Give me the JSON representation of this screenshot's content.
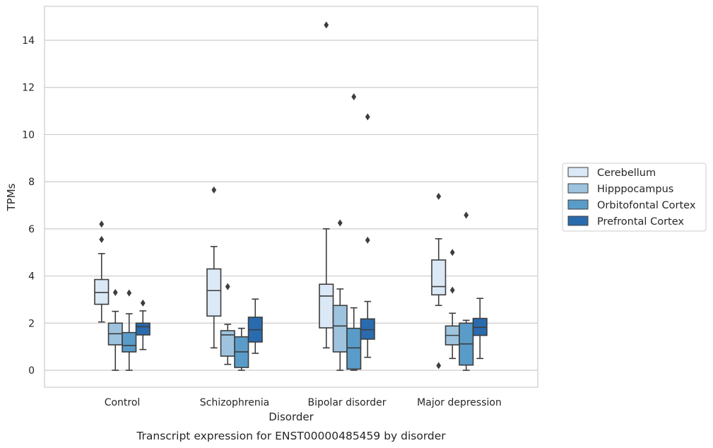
{
  "chart_data": {
    "type": "box",
    "xlabel": "Disorder",
    "ylabel": "TPMs",
    "caption": "Transcript expression for ENST00000485459 by disorder",
    "ylim": [
      -0.7,
      15.5
    ],
    "yticks": [
      0,
      2,
      4,
      6,
      8,
      10,
      12,
      14
    ],
    "grid": "horizontal",
    "legend_position": "right",
    "categories": [
      "Control",
      "Schizophrenia",
      "Bipolar disorder",
      "Major depression"
    ],
    "series": [
      {
        "name": "Cerebellum",
        "color": "#dbe8f5",
        "boxes": [
          {
            "whisker_low": 2.05,
            "q1": 2.8,
            "median": 3.3,
            "q3": 3.85,
            "whisker_high": 4.95,
            "outliers": [
              5.55,
              6.2
            ]
          },
          {
            "whisker_low": 0.95,
            "q1": 2.3,
            "median": 3.38,
            "q3": 4.3,
            "whisker_high": 5.25,
            "outliers": [
              7.65
            ]
          },
          {
            "whisker_low": 0.95,
            "q1": 1.8,
            "median": 3.15,
            "q3": 3.65,
            "whisker_high": 6.0,
            "outliers": [
              14.65
            ]
          },
          {
            "whisker_low": 2.75,
            "q1": 3.2,
            "median": 3.55,
            "q3": 4.68,
            "whisker_high": 5.58,
            "outliers": [
              0.2,
              7.38
            ]
          }
        ]
      },
      {
        "name": "Hipppocampus",
        "color": "#9dc3df",
        "boxes": [
          {
            "whisker_low": 0.0,
            "q1": 1.08,
            "median": 1.55,
            "q3": 2.0,
            "whisker_high": 2.5,
            "outliers": [
              3.3
            ]
          },
          {
            "whisker_low": 0.25,
            "q1": 0.6,
            "median": 1.5,
            "q3": 1.68,
            "whisker_high": 1.95,
            "outliers": [
              3.55
            ]
          },
          {
            "whisker_low": 0.0,
            "q1": 0.78,
            "median": 1.88,
            "q3": 2.75,
            "whisker_high": 3.45,
            "outliers": [
              6.25
            ]
          },
          {
            "whisker_low": 0.5,
            "q1": 1.08,
            "median": 1.48,
            "q3": 1.88,
            "whisker_high": 2.42,
            "outliers": [
              3.4,
              5.0
            ]
          }
        ]
      },
      {
        "name": "Orbitofontal Cortex",
        "color": "#5a9cc9",
        "boxes": [
          {
            "whisker_low": 0.0,
            "q1": 0.78,
            "median": 1.05,
            "q3": 1.6,
            "whisker_high": 2.4,
            "outliers": [
              3.28
            ]
          },
          {
            "whisker_low": 0.0,
            "q1": 0.12,
            "median": 0.78,
            "q3": 1.42,
            "whisker_high": 1.78,
            "outliers": []
          },
          {
            "whisker_low": 0.0,
            "q1": 0.05,
            "median": 0.95,
            "q3": 1.78,
            "whisker_high": 2.65,
            "outliers": [
              11.6
            ]
          },
          {
            "whisker_low": 0.0,
            "q1": 0.22,
            "median": 1.12,
            "q3": 2.0,
            "whisker_high": 2.12,
            "outliers": [
              6.58
            ]
          }
        ]
      },
      {
        "name": "Prefrontal Cortex",
        "color": "#2a6bae",
        "boxes": [
          {
            "whisker_low": 0.88,
            "q1": 1.5,
            "median": 1.85,
            "q3": 2.0,
            "whisker_high": 2.52,
            "outliers": [
              2.85
            ]
          },
          {
            "whisker_low": 0.72,
            "q1": 1.2,
            "median": 1.72,
            "q3": 2.25,
            "whisker_high": 3.02,
            "outliers": []
          },
          {
            "whisker_low": 0.55,
            "q1": 1.32,
            "median": 1.72,
            "q3": 2.18,
            "whisker_high": 2.92,
            "outliers": [
              5.52,
              10.75
            ]
          },
          {
            "whisker_low": 0.5,
            "q1": 1.48,
            "median": 1.82,
            "q3": 2.2,
            "whisker_high": 3.05,
            "outliers": []
          }
        ]
      }
    ]
  }
}
